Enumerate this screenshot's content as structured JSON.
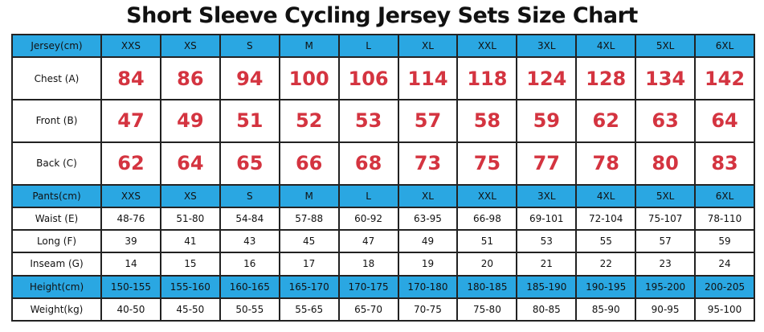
{
  "header": {
    "title": "Short Sleeve Cycling Jersey Sets Size Chart"
  },
  "table": {
    "rows": [
      [
        "Jersey(cm)",
        "XXS",
        "XS",
        "S",
        "M",
        "L",
        "XL",
        "XXL",
        "3XL",
        "4XL",
        "5XL",
        "6XL"
      ],
      [
        "Chest (A)",
        "84",
        "86",
        "94",
        "100",
        "106",
        "114",
        "118",
        "124",
        "128",
        "134",
        "142"
      ],
      [
        "Front (B)",
        "47",
        "49",
        "51",
        "52",
        "53",
        "57",
        "58",
        "59",
        "62",
        "63",
        "64"
      ],
      [
        "Back (C)",
        "62",
        "64",
        "65",
        "66",
        "68",
        "73",
        "75",
        "77",
        "78",
        "80",
        "83"
      ],
      [
        "Pants(cm)",
        "XXS",
        "XS",
        "S",
        "M",
        "L",
        "XL",
        "XXL",
        "3XL",
        "4XL",
        "5XL",
        "6XL"
      ],
      [
        "Waist (E)",
        "48-76",
        "51-80",
        "54-84",
        "57-88",
        "60-92",
        "63-95",
        "66-98",
        "69-101",
        "72-104",
        "75-107",
        "78-110"
      ],
      [
        "Long (F)",
        "39",
        "41",
        "43",
        "45",
        "47",
        "49",
        "51",
        "53",
        "55",
        "57",
        "59"
      ],
      [
        "Inseam (G)",
        "14",
        "15",
        "16",
        "17",
        "18",
        "19",
        "20",
        "21",
        "22",
        "23",
        "24"
      ],
      [
        "Height(cm)",
        "150-155",
        "155-160",
        "160-165",
        "165-170",
        "170-175",
        "170-180",
        "180-185",
        "185-190",
        "190-195",
        "195-200",
        "200-205"
      ],
      [
        "Weight(kg)",
        "40-50",
        "45-50",
        "50-55",
        "55-65",
        "65-70",
        "70-75",
        "75-80",
        "80-85",
        "85-90",
        "90-95",
        "95-100"
      ]
    ]
  }
}
